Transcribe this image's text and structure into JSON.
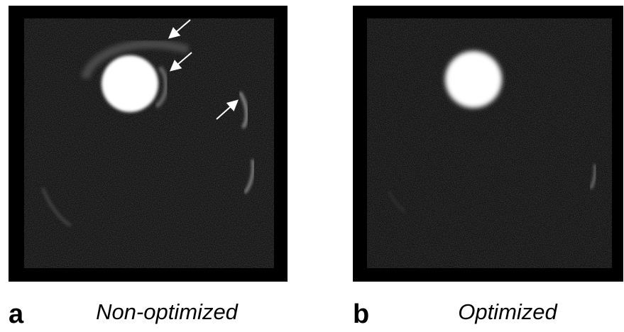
{
  "panels": [
    {
      "letter": "a",
      "caption": "Non-optimized"
    },
    {
      "letter": "b",
      "caption": "Optimized"
    }
  ]
}
